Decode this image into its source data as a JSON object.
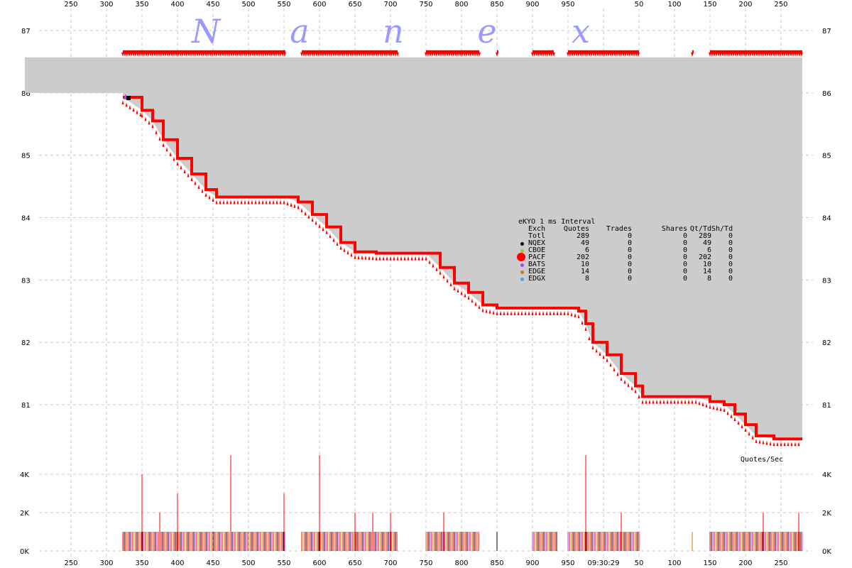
{
  "watermark": [
    "N",
    "a",
    "n",
    "e",
    "x"
  ],
  "time_label": "09:30:29",
  "quotes_per_sec_label": "Quotes/Sec",
  "stats": {
    "title": "eKYO 1 ms Interval",
    "headers": [
      "Exch",
      "Quotes",
      "Trades",
      "Shares",
      "Qt/Td",
      "Sh/Td"
    ],
    "rows": [
      {
        "exch": "Totl",
        "quotes": "289",
        "trades": "0",
        "shares": "0",
        "qt_td": "289",
        "sh_td": "0",
        "color": ""
      },
      {
        "exch": "NQEX",
        "quotes": "49",
        "trades": "0",
        "shares": "0",
        "qt_td": "49",
        "sh_td": "0",
        "color": "#000000"
      },
      {
        "exch": "CBOE",
        "quotes": "6",
        "trades": "0",
        "shares": "0",
        "qt_td": "6",
        "sh_td": "0",
        "color": "#99cc33"
      },
      {
        "exch": "PACF",
        "quotes": "202",
        "trades": "0",
        "shares": "0",
        "qt_td": "202",
        "sh_td": "0",
        "color": "#ff0000"
      },
      {
        "exch": "BATS",
        "quotes": "10",
        "trades": "0",
        "shares": "0",
        "qt_td": "10",
        "sh_td": "0",
        "color": "#cc33ff"
      },
      {
        "exch": "EDGE",
        "quotes": "14",
        "trades": "0",
        "shares": "0",
        "qt_td": "14",
        "sh_td": "0",
        "color": "#cc7722"
      },
      {
        "exch": "EDGX",
        "quotes": "8",
        "trades": "0",
        "shares": "0",
        "qt_td": "8",
        "sh_td": "0",
        "color": "#33aaff"
      }
    ]
  },
  "chart_data": [
    {
      "type": "line",
      "title": "",
      "xlabel": "",
      "ylabel": "",
      "x_tick_labels": [
        "250",
        "300",
        "350",
        "400",
        "450",
        "500",
        "550",
        "600",
        "650",
        "700",
        "750",
        "800",
        "850",
        "900",
        "950",
        "09:30:29",
        "50",
        "100",
        "150",
        "200",
        "250"
      ],
      "y_ticks": [
        81,
        82,
        83,
        84,
        85,
        86,
        87
      ],
      "ylim": [
        80.3,
        87.3
      ],
      "grid": true,
      "colors": {
        "nbbo_spread": "#cccccc",
        "quotes": "#ff0000",
        "ask_markers": "#ff0000"
      },
      "series": [
        {
          "values_ms": [
            [
              323,
              85.93
            ],
            [
              350,
              85.72
            ],
            [
              365,
              85.55
            ],
            [
              380,
              85.25
            ],
            [
              400,
              84.95
            ],
            [
              420,
              84.7
            ],
            [
              440,
              84.45
            ],
            [
              455,
              84.33
            ],
            [
              480,
              84.33
            ],
            [
              520,
              84.33
            ],
            [
              550,
              84.33
            ],
            [
              570,
              84.25
            ],
            [
              590,
              84.05
            ],
            [
              610,
              83.85
            ],
            [
              630,
              83.6
            ],
            [
              650,
              83.45
            ],
            [
              680,
              83.43
            ],
            [
              715,
              83.43
            ],
            [
              750,
              83.43
            ],
            [
              770,
              83.2
            ],
            [
              790,
              82.95
            ],
            [
              810,
              82.8
            ],
            [
              830,
              82.6
            ],
            [
              850,
              82.55
            ],
            [
              900,
              82.55
            ],
            [
              950,
              82.55
            ],
            [
              965,
              82.5
            ],
            [
              975,
              82.3
            ],
            [
              985,
              82.0
            ],
            [
              1005,
              81.8
            ],
            [
              1025,
              81.5
            ],
            [
              1045,
              81.3
            ],
            [
              1055,
              81.13
            ],
            [
              1080,
              81.13
            ],
            [
              1130,
              81.13
            ],
            [
              1150,
              81.05
            ],
            [
              1170,
              81.0
            ],
            [
              1185,
              80.85
            ],
            [
              1200,
              80.68
            ],
            [
              1215,
              80.5
            ],
            [
              1240,
              80.45
            ],
            [
              1280,
              80.45
            ]
          ]
        }
      ]
    },
    {
      "type": "bar",
      "title": "Quotes/Sec",
      "y_tick_labels": [
        "0K",
        "2K",
        "4K"
      ],
      "ylim": [
        0,
        5000
      ],
      "spikes": [
        {
          "x_ms": 350,
          "value": 4000
        },
        {
          "x_ms": 375,
          "value": 2000
        },
        {
          "x_ms": 400,
          "value": 3000
        },
        {
          "x_ms": 475,
          "value": 5000
        },
        {
          "x_ms": 550,
          "value": 3000
        },
        {
          "x_ms": 600,
          "value": 5000
        },
        {
          "x_ms": 650,
          "value": 2000
        },
        {
          "x_ms": 675,
          "value": 2000
        },
        {
          "x_ms": 700,
          "value": 2000
        },
        {
          "x_ms": 775,
          "value": 2000
        },
        {
          "x_ms": 975,
          "value": 5000
        },
        {
          "x_ms": 1025,
          "value": 2000
        },
        {
          "x_ms": 1225,
          "value": 2000
        },
        {
          "x_ms": 1275,
          "value": 2000
        }
      ],
      "baseline_value": 1000
    }
  ]
}
